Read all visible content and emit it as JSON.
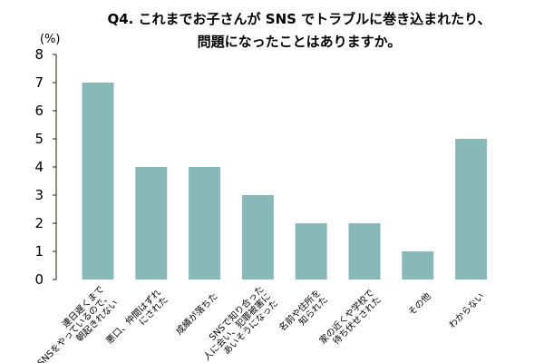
{
  "chart_data": {
    "type": "bar",
    "title_lines": [
      "Q4. これまでお子さんが SNS でトラブルに巻き込まれたり、",
      "問題になったことはありますか。"
    ],
    "y_unit": "(%)",
    "ylim": [
      0,
      8
    ],
    "y_ticks": [
      0,
      1,
      2,
      3,
      4,
      5,
      6,
      7,
      8
    ],
    "grid": false,
    "bar_color": "#88b8b8",
    "categories": [
      [
        "連日遅くまで",
        "SNSをやっているので、",
        "朝起きれない"
      ],
      [
        "悪口、仲間はずれ",
        "にされた"
      ],
      [
        "成績が落ちた"
      ],
      [
        "SNSで知り合った",
        "人に会い、犯罪被害に",
        "あいそうになった"
      ],
      [
        "名前や住所を",
        "知られた"
      ],
      [
        "家の近くや学校で",
        "待ち伏せされた"
      ],
      [
        "その他"
      ],
      [
        "わからない"
      ]
    ],
    "values": [
      7,
      4,
      4,
      3,
      2,
      2,
      1,
      5
    ]
  }
}
